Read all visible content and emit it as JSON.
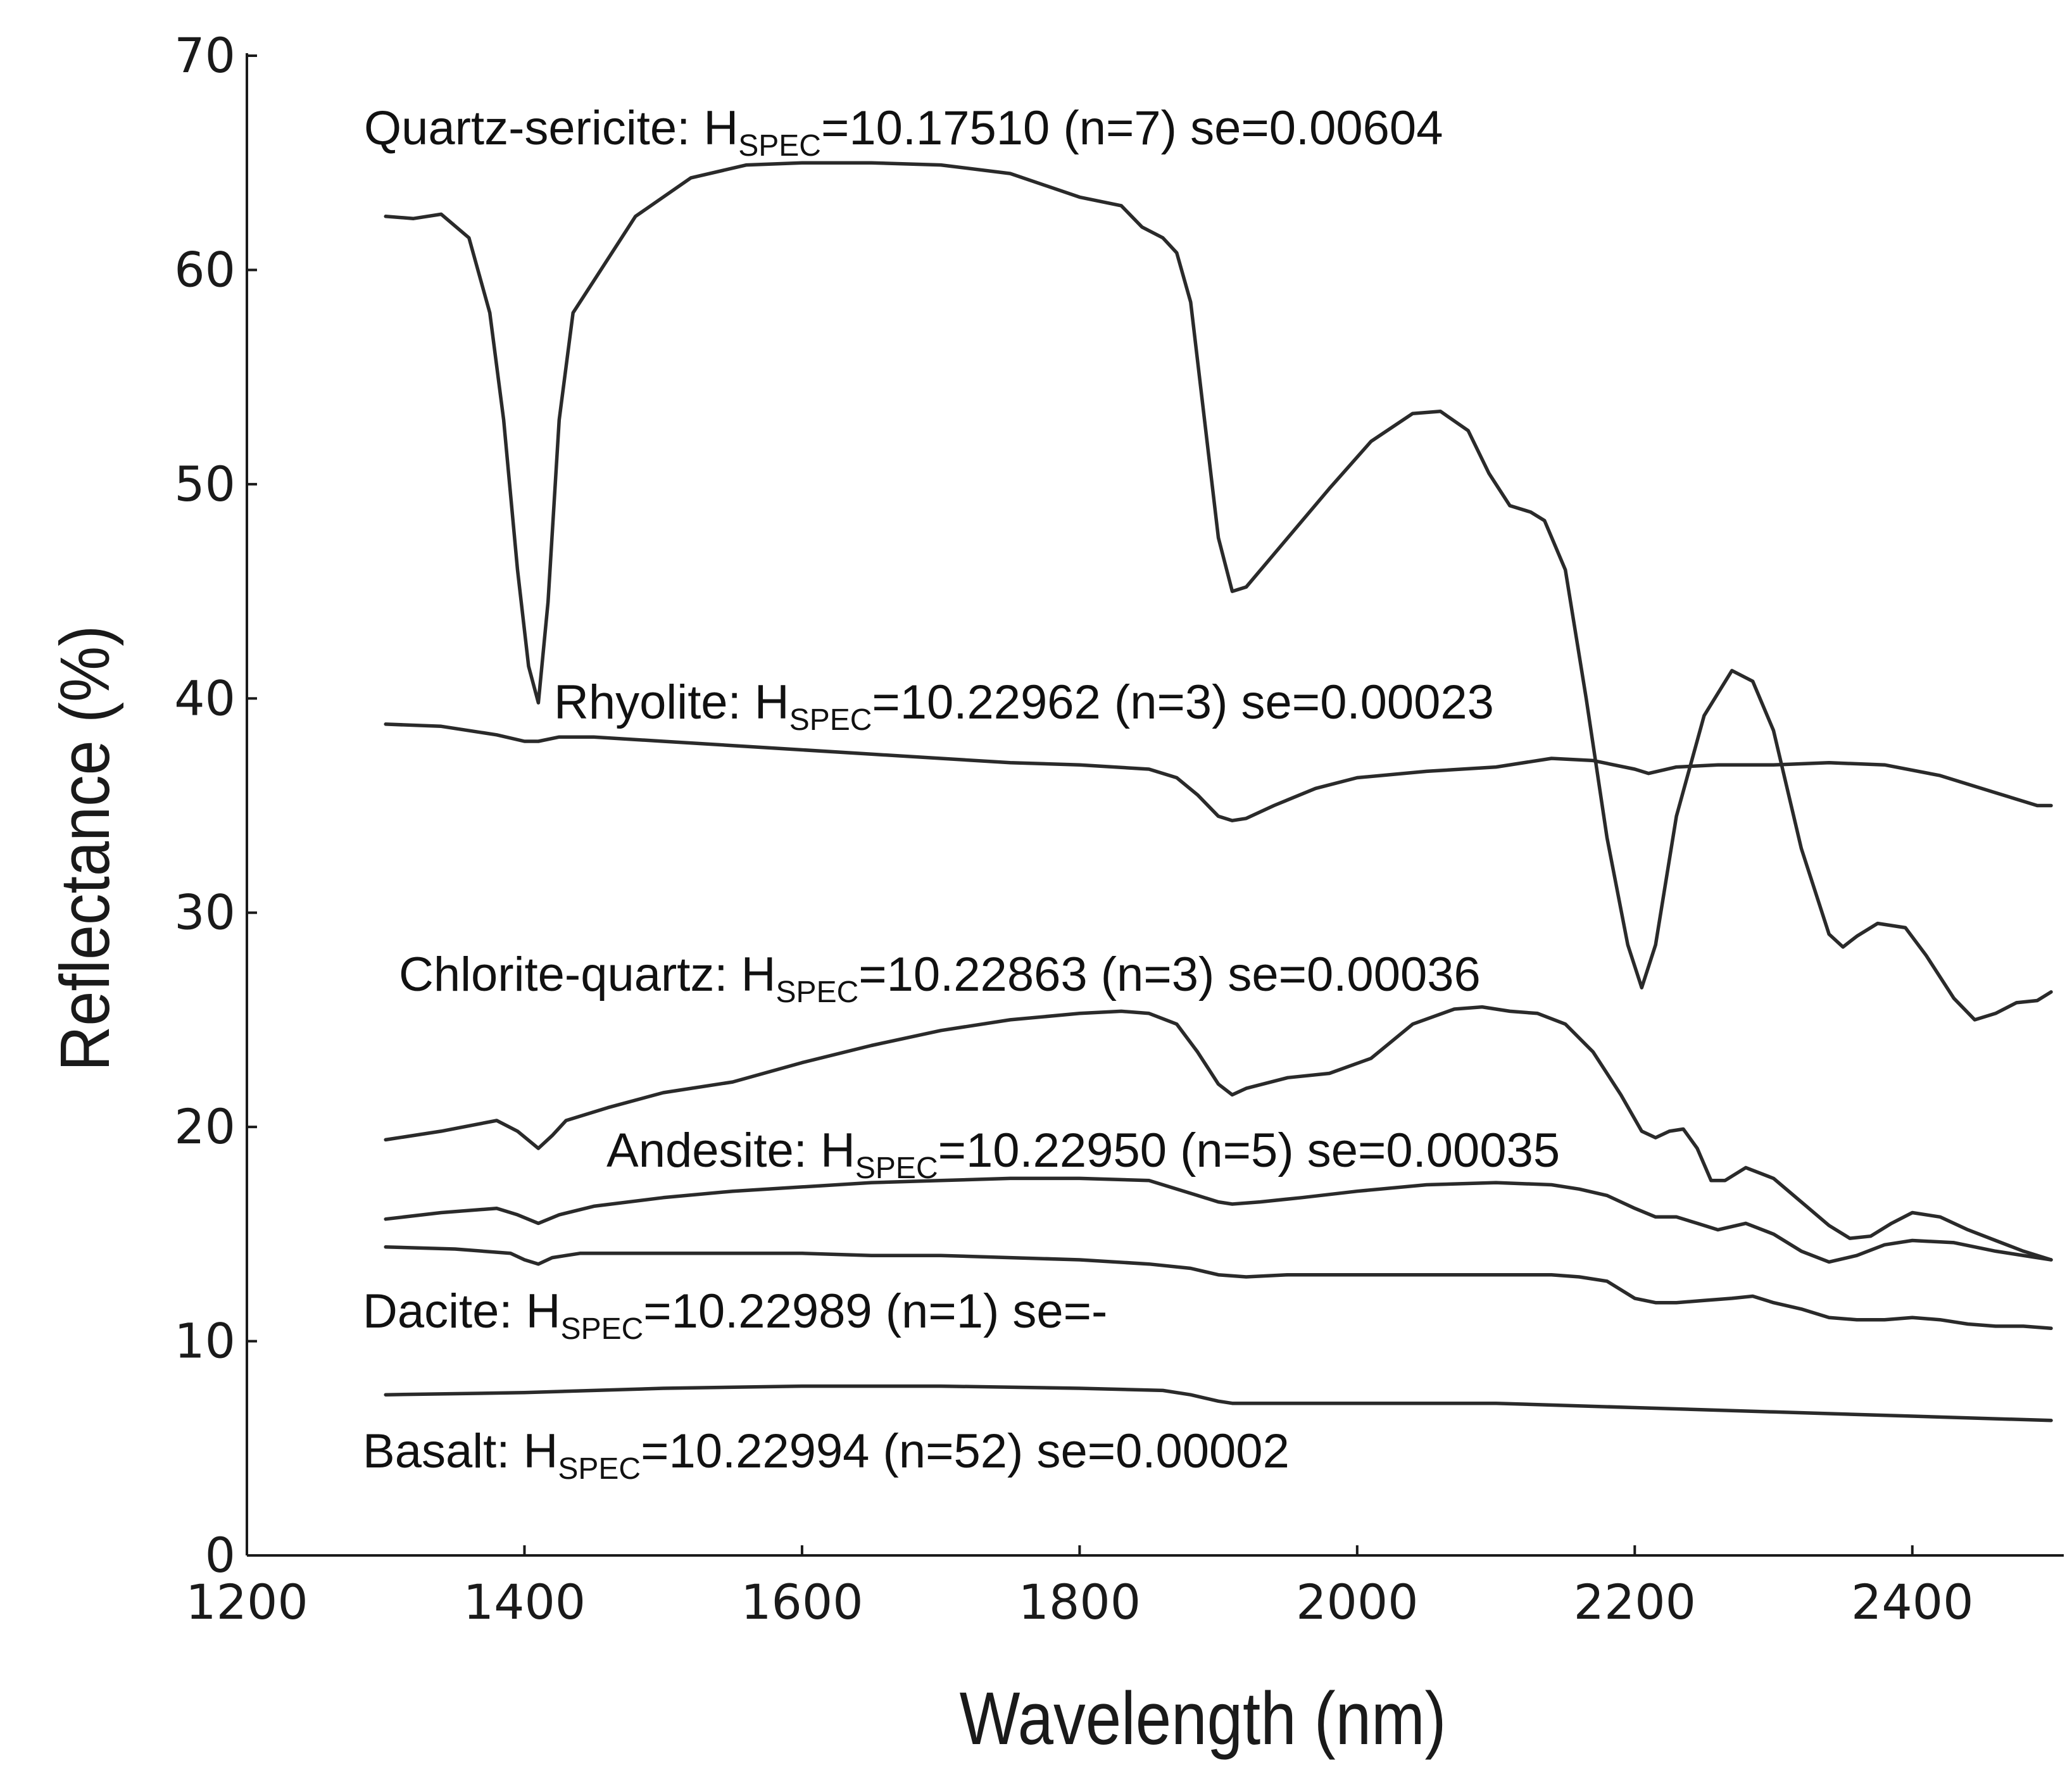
{
  "chart_data": {
    "type": "line",
    "title": "",
    "xlabel": "Wavelength (nm)",
    "ylabel": "Reflectance (%)",
    "xlim": [
      1200,
      2500
    ],
    "ylim": [
      0,
      70
    ],
    "xticks": [
      1200,
      1400,
      1600,
      1800,
      2000,
      2200,
      2400
    ],
    "yticks": [
      0,
      10,
      20,
      30,
      40,
      50,
      60,
      70
    ],
    "grid": false,
    "series": [
      {
        "name": "Quartz-sericite",
        "label": {
          "prefix": "Quartz-sericite: H",
          "sub": "SPEC",
          "suffix": "=10.17510 (n=7) se=0.00604"
        },
        "x": [
          1300,
          1320,
          1340,
          1360,
          1375,
          1385,
          1395,
          1403,
          1410,
          1417,
          1425,
          1435,
          1450,
          1480,
          1520,
          1560,
          1600,
          1650,
          1700,
          1750,
          1800,
          1830,
          1845,
          1860,
          1870,
          1880,
          1890,
          1900,
          1910,
          1920,
          1950,
          1980,
          2010,
          2040,
          2060,
          2080,
          2095,
          2110,
          2125,
          2135,
          2150,
          2165,
          2180,
          2195,
          2205,
          2215,
          2230,
          2250,
          2270,
          2285,
          2300,
          2320,
          2340,
          2350,
          2360,
          2375,
          2395,
          2410,
          2430,
          2445,
          2460,
          2475,
          2490,
          2500
        ],
        "y": [
          62.5,
          62.4,
          62.6,
          61.5,
          58.0,
          53.0,
          46.0,
          41.5,
          39.8,
          44.5,
          53.0,
          58.0,
          59.5,
          62.5,
          64.3,
          64.9,
          65.0,
          65.0,
          64.9,
          64.5,
          63.4,
          63.0,
          62.0,
          61.5,
          60.8,
          58.5,
          53.0,
          47.5,
          45.0,
          45.2,
          47.5,
          49.8,
          52.0,
          53.3,
          53.4,
          52.5,
          50.5,
          49.0,
          48.7,
          48.3,
          46.0,
          40.0,
          33.5,
          28.5,
          26.5,
          28.5,
          34.5,
          39.2,
          41.3,
          40.8,
          38.5,
          33.0,
          29.0,
          28.4,
          28.9,
          29.5,
          29.3,
          28.0,
          26.0,
          25.0,
          25.3,
          25.8,
          25.9,
          26.3
        ]
      },
      {
        "name": "Rhyolite",
        "label": {
          "prefix": "Rhyolite: H",
          "sub": "SPEC",
          "suffix": "=10.22962 (n=3) se=0.00023"
        },
        "x": [
          1300,
          1340,
          1380,
          1400,
          1410,
          1425,
          1450,
          1500,
          1550,
          1600,
          1650,
          1700,
          1750,
          1800,
          1850,
          1870,
          1885,
          1900,
          1910,
          1920,
          1940,
          1970,
          2000,
          2050,
          2100,
          2140,
          2170,
          2200,
          2210,
          2230,
          2260,
          2300,
          2340,
          2380,
          2420,
          2460,
          2490,
          2500
        ],
        "y": [
          38.8,
          38.7,
          38.3,
          38.0,
          38.0,
          38.2,
          38.2,
          38.0,
          37.8,
          37.6,
          37.4,
          37.2,
          37.0,
          36.9,
          36.7,
          36.3,
          35.5,
          34.5,
          34.3,
          34.4,
          35.0,
          35.8,
          36.3,
          36.6,
          36.8,
          37.2,
          37.1,
          36.7,
          36.5,
          36.8,
          36.9,
          36.9,
          37.0,
          36.9,
          36.4,
          35.6,
          35.0,
          35.0
        ]
      },
      {
        "name": "Chlorite-quartz",
        "label": {
          "prefix": "Chlorite-quartz: H",
          "sub": "SPEC",
          "suffix": "=10.22863 (n=3) se=0.00036"
        },
        "x": [
          1300,
          1340,
          1380,
          1395,
          1410,
          1420,
          1430,
          1460,
          1500,
          1550,
          1600,
          1650,
          1700,
          1750,
          1800,
          1830,
          1850,
          1870,
          1885,
          1900,
          1910,
          1920,
          1950,
          1980,
          2010,
          2040,
          2070,
          2090,
          2110,
          2130,
          2150,
          2170,
          2190,
          2205,
          2215,
          2225,
          2235,
          2245,
          2255,
          2265,
          2280,
          2300,
          2320,
          2340,
          2355,
          2370,
          2385,
          2400,
          2420,
          2440,
          2460,
          2480,
          2500
        ],
        "y": [
          19.4,
          19.8,
          20.3,
          19.8,
          19.0,
          19.6,
          20.3,
          20.9,
          21.6,
          22.1,
          23.0,
          23.8,
          24.5,
          25.0,
          25.3,
          25.4,
          25.3,
          24.8,
          23.5,
          22.0,
          21.5,
          21.8,
          22.3,
          22.5,
          23.2,
          24.8,
          25.5,
          25.6,
          25.4,
          25.3,
          24.8,
          23.5,
          21.5,
          19.8,
          19.5,
          19.8,
          19.9,
          19.0,
          17.5,
          17.5,
          18.1,
          17.6,
          16.5,
          15.4,
          14.8,
          14.9,
          15.5,
          16.0,
          15.8,
          15.2,
          14.7,
          14.2,
          13.8
        ]
      },
      {
        "name": "Andesite",
        "label": {
          "prefix": "Andesite: H",
          "sub": "SPEC",
          "suffix": "=10.22950 (n=5) se=0.00035"
        },
        "x": [
          1300,
          1340,
          1380,
          1395,
          1410,
          1425,
          1450,
          1500,
          1550,
          1600,
          1650,
          1700,
          1750,
          1800,
          1850,
          1870,
          1885,
          1900,
          1910,
          1930,
          1960,
          2000,
          2050,
          2100,
          2140,
          2160,
          2180,
          2200,
          2215,
          2230,
          2245,
          2260,
          2280,
          2300,
          2320,
          2340,
          2360,
          2380,
          2400,
          2430,
          2460,
          2490,
          2500
        ],
        "y": [
          15.7,
          16.0,
          16.2,
          15.9,
          15.5,
          15.9,
          16.3,
          16.7,
          17.0,
          17.2,
          17.4,
          17.5,
          17.6,
          17.6,
          17.5,
          17.1,
          16.8,
          16.5,
          16.4,
          16.5,
          16.7,
          17.0,
          17.3,
          17.4,
          17.3,
          17.1,
          16.8,
          16.2,
          15.8,
          15.8,
          15.5,
          15.2,
          15.5,
          15.0,
          14.2,
          13.7,
          14.0,
          14.5,
          14.7,
          14.6,
          14.2,
          13.9,
          13.8
        ]
      },
      {
        "name": "Dacite",
        "label": {
          "prefix": "Dacite: H",
          "sub": "SPEC",
          "suffix": "=10.22989 (n=1) se=-"
        },
        "x": [
          1300,
          1350,
          1390,
          1400,
          1410,
          1420,
          1440,
          1500,
          1550,
          1600,
          1650,
          1700,
          1750,
          1800,
          1850,
          1880,
          1900,
          1920,
          1950,
          2000,
          2050,
          2100,
          2140,
          2160,
          2180,
          2200,
          2215,
          2230,
          2250,
          2270,
          2285,
          2300,
          2320,
          2340,
          2360,
          2380,
          2400,
          2420,
          2440,
          2460,
          2480,
          2500
        ],
        "y": [
          14.4,
          14.3,
          14.1,
          13.8,
          13.6,
          13.9,
          14.1,
          14.1,
          14.1,
          14.1,
          14.0,
          14.0,
          13.9,
          13.8,
          13.6,
          13.4,
          13.1,
          13.0,
          13.1,
          13.1,
          13.1,
          13.1,
          13.1,
          13.0,
          12.8,
          12.0,
          11.8,
          11.8,
          11.9,
          12.0,
          12.1,
          11.8,
          11.5,
          11.1,
          11.0,
          11.0,
          11.1,
          11.0,
          10.8,
          10.7,
          10.7,
          10.6
        ]
      },
      {
        "name": "Basalt",
        "label": {
          "prefix": "Basalt: H",
          "sub": "SPEC",
          "suffix": "=10.22994 (n=52) se=0.00002"
        },
        "x": [
          1300,
          1400,
          1500,
          1600,
          1700,
          1800,
          1860,
          1880,
          1900,
          1910,
          2000,
          2100,
          2200,
          2300,
          2400,
          2500
        ],
        "y": [
          7.5,
          7.6,
          7.8,
          7.9,
          7.9,
          7.8,
          7.7,
          7.5,
          7.2,
          7.1,
          7.1,
          7.1,
          6.9,
          6.7,
          6.5,
          6.3
        ]
      }
    ]
  }
}
